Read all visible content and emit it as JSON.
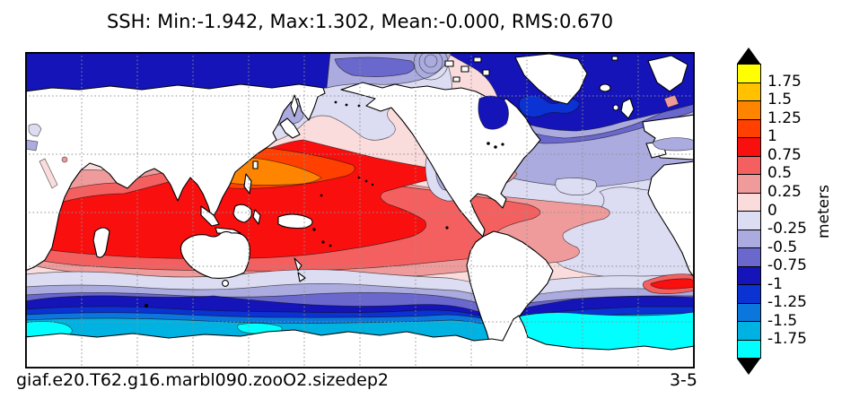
{
  "title": "SSH: Min:-1.942, Max:1.302, Mean:-0.000, RMS:0.670",
  "footer": {
    "left": "giaf.e20.T62.g16.marbl090.zooO2.sizedep2",
    "right": "3-5"
  },
  "colorbar": {
    "units": "meters",
    "tick_labels": [
      "1.75",
      "1.5",
      "1.25",
      "1",
      "0.75",
      "0.5",
      "0.25",
      "0",
      "-0.25",
      "-0.5",
      "-0.75",
      "-1",
      "-1.25",
      "-1.5",
      "-1.75"
    ],
    "colors": [
      "#FFFF00",
      "#FFC100",
      "#FF8400",
      "#FF4000",
      "#FA0F0F",
      "#F46060",
      "#F09B9B",
      "#FBDCDC",
      "#DCDCF2",
      "#ABABDF",
      "#6A68CD",
      "#1414B9",
      "#0B32D2",
      "#0B77DC",
      "#00B2E1",
      "#00FFFF"
    ],
    "over_arrow_color": "#000000",
    "under_arrow_color": "#000000"
  },
  "chart_data": {
    "type": "heatmap",
    "subtype": "filled-contour world map (Pacific-centered cylindrical view)",
    "variable": "SSH (sea surface height)",
    "units": "meters",
    "title": "SSH: Min:-1.942, Max:1.302, Mean:-0.000, RMS:0.670",
    "stats": {
      "min": -1.942,
      "max": 1.302,
      "mean": 0.0,
      "rms": 0.67
    },
    "contour_levels": [
      -1.75,
      -1.5,
      -1.25,
      -1,
      -0.75,
      -0.5,
      -0.25,
      0,
      0.25,
      0.5,
      0.75,
      1,
      1.25,
      1.5,
      1.75
    ],
    "legend_position": "right vertical colorbar with black out-of-range arrows",
    "grid": {
      "style": "dotted gray",
      "lon_lines": 11,
      "lat_lines": 5
    },
    "land_color": "#FFFFFF",
    "regions_read_from_map": [
      {
        "area": "western tropical Pacific warm-pool core (Kuroshio region)",
        "ssh_m": "+1.25 to +1.3 (orange core)"
      },
      {
        "area": "NW tropical Pacific wedge",
        "ssh_m": "+1.0 to +1.25"
      },
      {
        "area": "tropical Indo-Pacific and SPCZ",
        "ssh_m": "+0.75 to +1.0"
      },
      {
        "area": "subtropical Indian and central Pacific",
        "ssh_m": "+0.25 to +0.75"
      },
      {
        "area": "eastern Pacific, equatorial Atlantic, mid-latitudes",
        "ssh_m": "0 to +0.25"
      },
      {
        "area": "Gulf of Alaska and eastern equatorial Pacific eddy",
        "ssh_m": "-0.5 to 0"
      },
      {
        "area": "subtropical North and South Atlantic",
        "ssh_m": "-0.5 to -0.25"
      },
      {
        "area": "Agulhas retroflection spot south of Africa",
        "ssh_m": "+0.75 to +1.0"
      },
      {
        "area": "subpolar North Atlantic / Labrador and GIN seas",
        "ssh_m": "-1.0 to -1.3"
      },
      {
        "area": "Arctic Ocean",
        "ssh_m": "-0.75 to -1.0"
      },
      {
        "area": "Southern Ocean ACC band (circumpolar)",
        "ssh_m": "-0.75 to -1.5"
      },
      {
        "area": "Antarctic coastal seas (Weddell/Ross)",
        "ssh_m": "-1.5 to -1.942 (cyan)"
      }
    ]
  }
}
